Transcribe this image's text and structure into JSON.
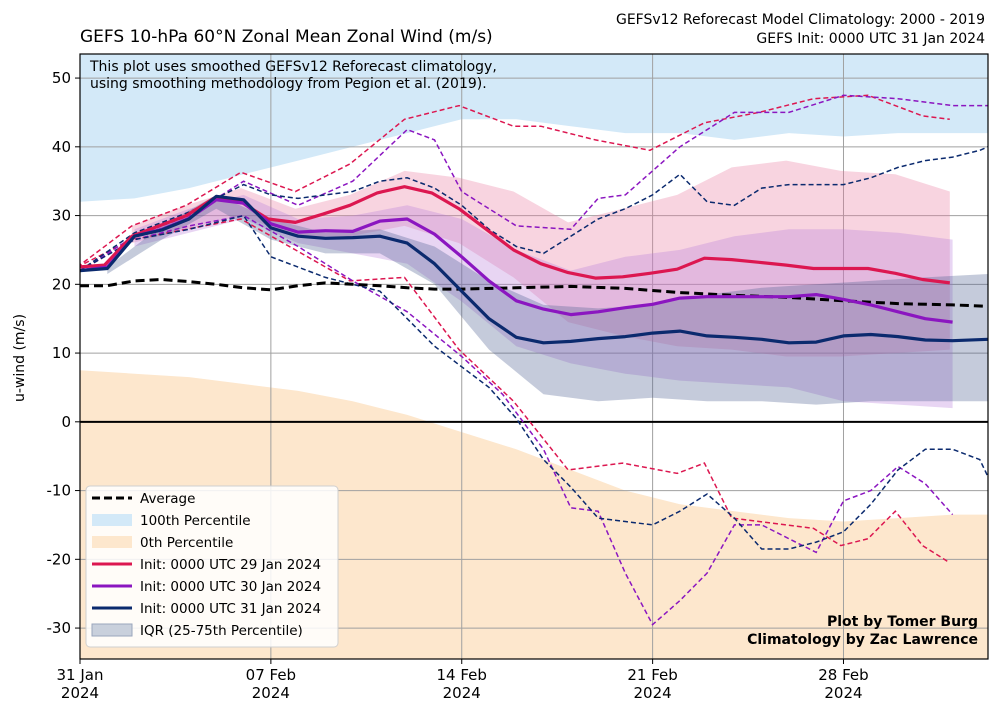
{
  "chart_data": {
    "type": "line",
    "title": "GEFS 10-hPa 60°N Zonal Mean Zonal Wind (m/s)",
    "subtitle_lines": [
      "GEFSv12 Reforecast Model Climatology: 2000 - 2019",
      "GEFS Init: 0000 UTC 31 Jan 2024"
    ],
    "note_lines": [
      "This plot uses smoothed GEFSv12 Reforecast climatology,",
      "using smoothing methodology from Pegion et al. (2019)."
    ],
    "credits": [
      "Plot by Tomer Burg",
      "Climatology by Zac Lawrence"
    ],
    "ylabel": "u-wind (m/s)",
    "xlabel": "",
    "ylim": [
      -34.5,
      53.5
    ],
    "xlim": [
      0,
      33.3
    ],
    "yticks": [
      -30,
      -20,
      -10,
      0,
      10,
      20,
      30,
      40,
      50
    ],
    "xticks": [
      {
        "day": 0,
        "line1": "31 Jan",
        "line2": "2024"
      },
      {
        "day": 7,
        "line1": "07 Feb",
        "line2": "2024"
      },
      {
        "day": 14,
        "line1": "14 Feb",
        "line2": "2024"
      },
      {
        "day": 21,
        "line1": "21 Feb",
        "line2": "2024"
      },
      {
        "day": 28,
        "line1": "28 Feb",
        "line2": "2024"
      }
    ],
    "grid": true,
    "legend_position": "lower-left",
    "colors": {
      "average": "#000000",
      "p100": "#d3e9f8",
      "p0": "#fde7cd",
      "init29": "#dc1750",
      "init30": "#8b16c0",
      "init31": "#0b2a6e",
      "iqr29": "#e8799e",
      "iqr30": "#b77ddb",
      "iqr31": "#4b5d8f"
    },
    "legend": [
      {
        "label": "Average",
        "kind": "dashed",
        "color": "#000000"
      },
      {
        "label": "100th Percentile",
        "kind": "patch",
        "color": "#d3e9f8"
      },
      {
        "label": "0th Percentile",
        "kind": "patch",
        "color": "#fde7cd"
      },
      {
        "label": "Init: 0000 UTC 29 Jan 2024",
        "kind": "line",
        "color": "#dc1750"
      },
      {
        "label": "Init: 0000 UTC 30 Jan 2024",
        "kind": "line",
        "color": "#8b16c0"
      },
      {
        "label": "Init: 0000 UTC 31 Jan 2024",
        "kind": "line",
        "color": "#0b2a6e"
      },
      {
        "label": "IQR (25-75th Percentile)",
        "kind": "patch",
        "color": "#c9d0dc"
      }
    ],
    "climatology": {
      "days": [
        0,
        2,
        4,
        6,
        8,
        10,
        12,
        14,
        16,
        18,
        20,
        22,
        24,
        26,
        28,
        30,
        32,
        33.3
      ],
      "p100": [
        32,
        32.5,
        34,
        36,
        38,
        40,
        42,
        44,
        44,
        43,
        42,
        42,
        41,
        42,
        41.5,
        42,
        42,
        42
      ],
      "p0": [
        7.5,
        7,
        6.5,
        5.5,
        4.5,
        3,
        1,
        -1.5,
        -4,
        -7,
        -10,
        -12,
        -13,
        -14,
        -14.5,
        -14,
        -13.5,
        -13.5
      ],
      "average": {
        "x": [
          0,
          1,
          2,
          3,
          4,
          5,
          6,
          7,
          8,
          9,
          10,
          11,
          12,
          13,
          14,
          16,
          18,
          20,
          22,
          24,
          26,
          28,
          30,
          32,
          33.3
        ],
        "y": [
          19.8,
          19.8,
          20.5,
          20.7,
          20.4,
          20.0,
          19.5,
          19.2,
          19.8,
          20.2,
          20.0,
          19.8,
          19.5,
          19.3,
          19.3,
          19.5,
          19.7,
          19.4,
          18.8,
          18.4,
          18.1,
          17.6,
          17.2,
          17.0,
          16.8
        ]
      }
    },
    "series": [
      {
        "name": "Init: 0000 UTC 29 Jan 2024",
        "color_key": "init29",
        "x": [
          -0.1,
          0.9,
          1.9,
          2.9,
          3.9,
          4.9,
          5.9,
          6.9,
          7.9,
          8.9,
          9.9,
          10.9,
          11.9,
          12.9,
          13.9,
          14.9,
          15.9,
          16.9,
          17.9,
          18.9,
          19.9,
          20.9,
          21.9,
          22.9,
          23.9,
          24.9,
          25.9,
          26.9,
          27.9,
          28.9,
          29.9,
          30.9,
          31.9
        ],
        "median": [
          22.5,
          22.8,
          27.0,
          28.5,
          30.0,
          32.5,
          32.0,
          29.5,
          29.0,
          30.2,
          31.5,
          33.3,
          34.2,
          33.3,
          31.0,
          28.0,
          25.0,
          23.0,
          21.7,
          20.9,
          21.1,
          21.6,
          22.2,
          23.8,
          23.6,
          23.2,
          22.8,
          22.3,
          22.3,
          22.3,
          21.6,
          20.7,
          20.2
        ],
        "iqr_x": [
          1.9,
          3.9,
          5.9,
          7.9,
          9.9,
          11.9,
          13.9,
          15.9,
          17.9,
          19.9,
          21.9,
          23.9,
          25.9,
          27.9,
          29.9,
          31.9
        ],
        "iqr_high": [
          28.5,
          31.5,
          34.0,
          31.0,
          33.0,
          36.5,
          35.5,
          33.5,
          29.0,
          31.0,
          33.0,
          37.0,
          38.0,
          36.5,
          36.0,
          33.5
        ],
        "iqr_low": [
          26.0,
          28.0,
          30.0,
          27.0,
          27.0,
          28.5,
          26.0,
          21.0,
          14.5,
          12.5,
          11.0,
          10.5,
          9.5,
          9.5,
          10.0,
          10.5
        ],
        "max_x": [
          -0.1,
          1.9,
          3.9,
          5.9,
          7.9,
          9.9,
          11.9,
          13.9,
          15.9,
          16.9,
          18.9,
          20.9,
          22.9,
          24.9,
          26.9,
          28.9,
          30.9,
          31.9
        ],
        "max": [
          22.5,
          28.5,
          31.5,
          36.3,
          33.5,
          37.5,
          44.0,
          46.0,
          43.0,
          43.0,
          41.0,
          39.5,
          43.5,
          45.0,
          47.0,
          47.5,
          44.5,
          44.0
        ],
        "min_x": [
          -0.1,
          1.9,
          3.9,
          5.9,
          7.9,
          9.9,
          11.9,
          13.9,
          15.9,
          17.9,
          18.9,
          19.9,
          21.9,
          22.9,
          23.9,
          24.9,
          26.9,
          27.9,
          28.9,
          29.9,
          30.9,
          31.9
        ],
        "min": [
          22.5,
          26.5,
          28.0,
          29.5,
          25.0,
          20.5,
          21.0,
          10.5,
          3.0,
          -7.0,
          -6.5,
          -6.0,
          -7.5,
          -6.0,
          -14.0,
          -14.5,
          -15.5,
          -18.0,
          -17.0,
          -13.0,
          -18.0,
          -20.5
        ]
      },
      {
        "name": "Init: 0000 UTC 30 Jan 2024",
        "color_key": "init30",
        "x": [
          0,
          1,
          2,
          3,
          4,
          5,
          6,
          7,
          8,
          9,
          10,
          11,
          12,
          13,
          14,
          15,
          16,
          17,
          18,
          19,
          20,
          21,
          22,
          23,
          24,
          25,
          26,
          27,
          28,
          29,
          30,
          31,
          32
        ],
        "median": [
          22.0,
          22.5,
          27.0,
          28.0,
          29.6,
          32.3,
          31.8,
          28.8,
          27.6,
          27.8,
          27.7,
          29.2,
          29.5,
          27.3,
          24.0,
          20.5,
          17.6,
          16.4,
          15.6,
          16.0,
          16.6,
          17.1,
          18.0,
          18.2,
          18.2,
          18.2,
          18.2,
          18.5,
          17.8,
          17.0,
          16.0,
          15.0,
          14.5
        ],
        "iqr_x": [
          2,
          4,
          6,
          8,
          10,
          12,
          14,
          16,
          18,
          20,
          22,
          24,
          26,
          28,
          30,
          32
        ],
        "iqr_high": [
          28.0,
          31.0,
          33.0,
          29.5,
          30.0,
          31.5,
          29.5,
          25.0,
          22.0,
          24.0,
          25.0,
          27.0,
          28.0,
          28.0,
          27.5,
          26.5
        ],
        "iqr_low": [
          25.5,
          27.5,
          29.5,
          26.0,
          24.5,
          23.0,
          17.5,
          11.0,
          8.5,
          7.0,
          6.0,
          5.5,
          5.0,
          3.0,
          2.5,
          2.0
        ],
        "max_x": [
          0,
          2,
          4,
          6,
          8,
          10,
          12,
          13,
          14,
          16,
          18,
          19,
          20,
          22,
          24,
          26,
          28,
          30,
          32,
          33.3
        ],
        "max": [
          22.0,
          27.0,
          30.0,
          35.0,
          31.5,
          35.0,
          42.5,
          41.0,
          33.5,
          28.5,
          28.0,
          32.5,
          33.0,
          40.0,
          45.0,
          45.0,
          47.5,
          47.0,
          46.0,
          46.0
        ],
        "min_x": [
          0,
          2,
          4,
          6,
          8,
          10,
          12,
          14,
          15.5,
          17,
          18,
          19,
          20,
          21,
          22,
          23,
          24,
          25,
          26,
          27,
          28,
          29,
          30,
          31,
          32
        ],
        "min": [
          22.0,
          26.5,
          28.5,
          30.0,
          25.5,
          20.5,
          16.0,
          9.5,
          4.0,
          -4.0,
          -12.5,
          -13.0,
          -22.0,
          -29.5,
          -26.0,
          -22.0,
          -15.0,
          -15.0,
          -17.0,
          -19.0,
          -11.5,
          -10.0,
          -6.5,
          -9.0,
          -13.5
        ]
      },
      {
        "name": "Init: 0000 UTC 31 Jan 2024",
        "color_key": "init31",
        "x": [
          0,
          1,
          2,
          3,
          4,
          5,
          6,
          7,
          8,
          9,
          10,
          11,
          12,
          13,
          14,
          15,
          16,
          17,
          18,
          19,
          20,
          21,
          22,
          23,
          24,
          25,
          26,
          27,
          28,
          29,
          30,
          31,
          32,
          33.3
        ],
        "median": [
          22.0,
          22.3,
          27.0,
          27.9,
          29.5,
          32.8,
          32.3,
          28.2,
          27.0,
          26.7,
          26.8,
          27.0,
          26.0,
          23.0,
          19.0,
          15.0,
          12.3,
          11.5,
          11.7,
          12.1,
          12.4,
          12.9,
          13.2,
          12.5,
          12.3,
          12.0,
          11.5,
          11.6,
          12.5,
          12.7,
          12.4,
          11.9,
          11.8,
          12.0
        ],
        "iqr_x": [
          1,
          3,
          5,
          7,
          9,
          11,
          13,
          15,
          17,
          19,
          21,
          23,
          25,
          27,
          29,
          31,
          33.3
        ],
        "iqr_high": [
          22.5,
          28.5,
          33.0,
          29.5,
          27.5,
          28.0,
          25.5,
          20.5,
          17.0,
          16.5,
          17.0,
          18.5,
          19.5,
          20.0,
          20.5,
          21.0,
          21.5
        ],
        "iqr_low": [
          21.5,
          26.5,
          31.0,
          26.5,
          24.5,
          24.5,
          20.0,
          10.5,
          4.0,
          3.0,
          3.5,
          3.0,
          3.0,
          2.5,
          3.0,
          3.0,
          3.0
        ],
        "max_x": [
          0,
          2,
          4,
          6,
          7,
          8,
          9,
          10,
          11,
          12,
          13,
          14,
          15,
          16,
          17,
          18,
          19,
          20,
          21,
          22,
          23,
          24,
          25,
          26,
          27,
          28,
          29,
          30,
          31,
          32,
          33,
          33.3
        ],
        "max": [
          22.0,
          27.5,
          30.5,
          34.5,
          33.0,
          32.5,
          33.0,
          33.5,
          35.0,
          35.5,
          34.0,
          31.5,
          28.0,
          25.5,
          24.5,
          27.0,
          29.5,
          31.0,
          33.0,
          36.0,
          32.0,
          31.5,
          34.0,
          34.5,
          34.5,
          34.5,
          35.5,
          37.0,
          38.0,
          38.5,
          39.5,
          40.0
        ],
        "min_x": [
          0,
          2,
          4,
          6,
          7,
          8,
          9,
          10,
          11,
          12,
          13,
          14,
          15,
          16,
          17,
          18,
          19,
          20,
          21,
          22,
          23,
          24,
          25,
          26,
          27,
          28,
          29,
          30,
          31,
          32,
          33,
          33.3
        ],
        "min": [
          22.0,
          26.5,
          28.0,
          30.0,
          24.0,
          22.5,
          21.0,
          20.0,
          19.0,
          15.0,
          11.0,
          8.0,
          5.0,
          0.5,
          -5.5,
          -9.5,
          -14.0,
          -14.5,
          -15.0,
          -13.0,
          -10.5,
          -14.0,
          -18.5,
          -18.5,
          -17.5,
          -16.0,
          -12.0,
          -7.0,
          -4.0,
          -4.0,
          -5.5,
          -8.0
        ]
      }
    ]
  }
}
